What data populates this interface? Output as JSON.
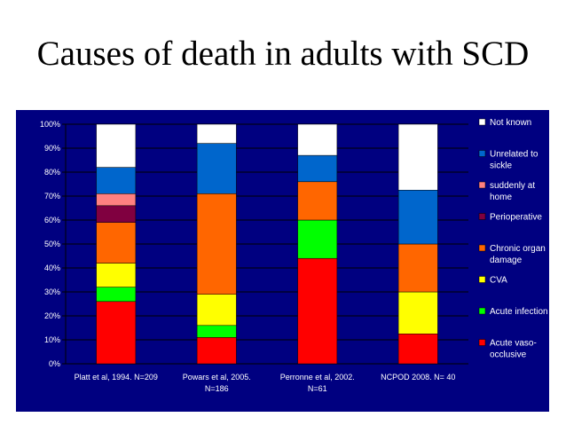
{
  "slide": {
    "title": "Causes of death in adults with SCD"
  },
  "chart_data": {
    "type": "bar",
    "stacked": true,
    "percent": true,
    "title": "",
    "xlabel": "",
    "ylabel": "",
    "ylim": [
      0,
      100
    ],
    "yticks": [
      "0%",
      "10%",
      "20%",
      "30%",
      "40%",
      "50%",
      "60%",
      "70%",
      "80%",
      "90%",
      "100%"
    ],
    "grid": true,
    "legend_position": "right",
    "background": "#000080",
    "categories": [
      [
        "Platt et al, 1994. N=209"
      ],
      [
        "Powars et al, 2005.",
        "N=186"
      ],
      [
        "Perronne et al, 2002.",
        "N=61"
      ],
      [
        "NCPOD 2008. N= 40"
      ]
    ],
    "series": [
      {
        "name": "Acute vaso-occlusive",
        "legend_lines": [
          "Acute vaso-",
          "occlusive"
        ],
        "color": "#ff0000",
        "values": [
          26,
          11,
          44,
          12.5
        ]
      },
      {
        "name": "Acute infection",
        "legend_lines": [
          "Acute infection"
        ],
        "color": "#00ff00",
        "values": [
          6,
          5,
          16,
          0
        ]
      },
      {
        "name": "CVA",
        "legend_lines": [
          "CVA"
        ],
        "color": "#ffff00",
        "values": [
          10,
          13,
          0,
          17.5
        ]
      },
      {
        "name": "Chronic organ damage",
        "legend_lines": [
          "Chronic organ",
          "damage"
        ],
        "color": "#ff6600",
        "values": [
          17,
          42,
          16,
          20
        ]
      },
      {
        "name": "Perioperative",
        "legend_lines": [
          "Perioperative"
        ],
        "color": "#800040",
        "values": [
          7,
          0,
          0,
          0
        ]
      },
      {
        "name": "suddenly at home",
        "legend_lines": [
          "suddenly at",
          "home"
        ],
        "color": "#ff8080",
        "values": [
          5,
          0,
          0,
          0
        ]
      },
      {
        "name": "Unrelated to sickle",
        "legend_lines": [
          "Unrelated to",
          "sickle"
        ],
        "color": "#0066cc",
        "values": [
          11,
          21,
          11,
          22.5
        ]
      },
      {
        "name": "Not known",
        "legend_lines": [
          "Not known"
        ],
        "color": "#ffffff",
        "values": [
          18,
          8,
          13,
          27.5
        ]
      }
    ]
  }
}
